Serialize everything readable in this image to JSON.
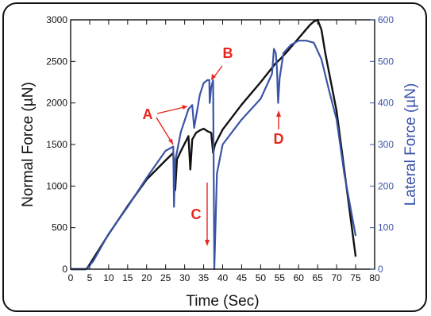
{
  "chart_data": {
    "type": "line",
    "title": "",
    "xlabel": "Time (Sec)",
    "ylabel_left": "Normal Force (µN)",
    "ylabel_right": "Lateral Force (µN)",
    "xlim": [
      0,
      80
    ],
    "ylim_left": [
      0,
      3000
    ],
    "ylim_right": [
      0,
      600
    ],
    "xticks": [
      "0",
      "5",
      "10",
      "15",
      "20",
      "25",
      "30",
      "35",
      "40",
      "45",
      "50",
      "55",
      "60",
      "65",
      "70",
      "75",
      "80"
    ],
    "yticks_left": [
      "0",
      "500",
      "1000",
      "1500",
      "2000",
      "2500",
      "3000"
    ],
    "yticks_right": [
      "0",
      "100",
      "200",
      "300",
      "400",
      "500",
      "600"
    ],
    "grid": false,
    "colors": {
      "normal": "#111111",
      "lateral": "#3b54a6",
      "annotation": "#e8261f",
      "right_axis": "#3b54a6"
    },
    "series": [
      {
        "axis": "left",
        "color": "#111111",
        "x": [
          0,
          4,
          4.5,
          6,
          10,
          15,
          20,
          25,
          27,
          27.5,
          28,
          29,
          31,
          31.5,
          32,
          33,
          34,
          35,
          36,
          37,
          37.5,
          38,
          40,
          45,
          50,
          54,
          55,
          57,
          60,
          63,
          64,
          65,
          66,
          67,
          70,
          75
        ],
        "y": [
          0,
          0,
          20,
          130,
          420,
          760,
          1080,
          1310,
          1400,
          950,
          1320,
          1420,
          1600,
          1200,
          1560,
          1640,
          1670,
          1690,
          1660,
          1640,
          1400,
          1500,
          1680,
          1980,
          2250,
          2480,
          2520,
          2620,
          2780,
          2940,
          2980,
          3000,
          2880,
          2600,
          1900,
          150
        ]
      },
      {
        "axis": "right",
        "color": "#3b54a6",
        "x": [
          0,
          4,
          4.5,
          6,
          10,
          15,
          20,
          25,
          27,
          27.2,
          27.5,
          29,
          31,
          32,
          32.5,
          34,
          35,
          36,
          36.5,
          36.6,
          37,
          37.5,
          37.8,
          38.5,
          40,
          45,
          50,
          53,
          53.5,
          54,
          54.3,
          54.6,
          55,
          56,
          58,
          60,
          62,
          64,
          66,
          68,
          70,
          72,
          75
        ],
        "y": [
          0,
          0,
          3,
          20,
          85,
          150,
          220,
          285,
          295,
          150,
          260,
          330,
          385,
          395,
          340,
          420,
          448,
          455,
          455,
          400,
          438,
          455,
          0,
          230,
          300,
          360,
          410,
          470,
          530,
          520,
          480,
          400,
          460,
          520,
          540,
          550,
          550,
          545,
          505,
          430,
          360,
          230,
          80
        ]
      }
    ],
    "annotations": [
      {
        "label": "A",
        "target": "Lateral force drops near 27 s and 32 s"
      },
      {
        "label": "B",
        "target": "Lateral force peak near 37 s"
      },
      {
        "label": "C",
        "target": "Lateral force drop near 37.5 s"
      },
      {
        "label": "D",
        "target": "Lateral force dip near 54 s"
      }
    ]
  }
}
